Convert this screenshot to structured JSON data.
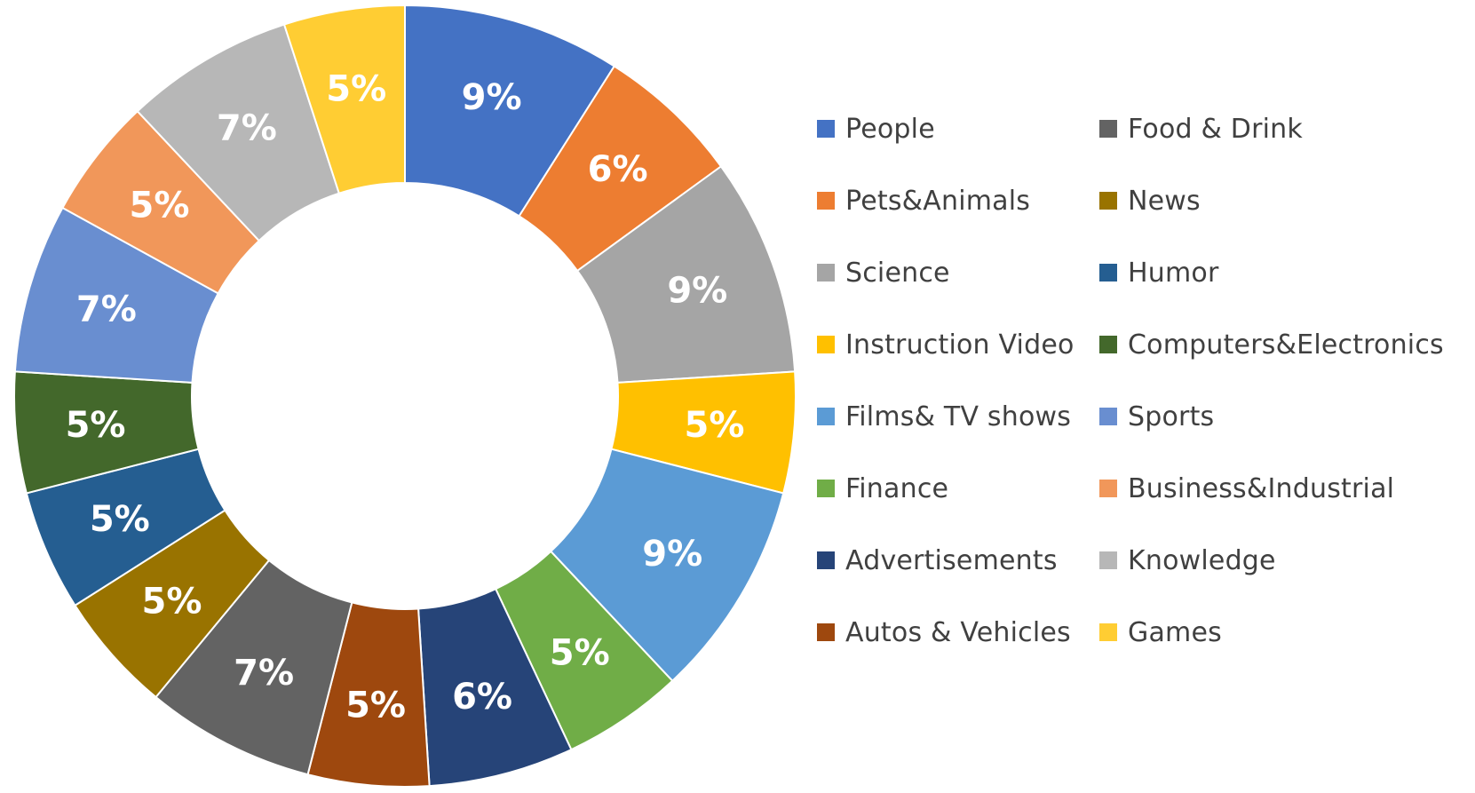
{
  "chart_data": {
    "type": "pie",
    "variant": "donut",
    "legend_position": "right",
    "slices": [
      {
        "name": "People",
        "value": 9,
        "label": "9%",
        "color": "#4472C4"
      },
      {
        "name": "Pets&Animals",
        "value": 6,
        "label": "6%",
        "color": "#ED7D31"
      },
      {
        "name": "Science",
        "value": 9,
        "label": "9%",
        "color": "#A5A5A5"
      },
      {
        "name": "Instruction Video",
        "value": 5,
        "label": "5%",
        "color": "#FFC000"
      },
      {
        "name": "Films& TV shows",
        "value": 9,
        "label": "9%",
        "color": "#5B9BD5"
      },
      {
        "name": "Finance",
        "value": 5,
        "label": "5%",
        "color": "#70AD47"
      },
      {
        "name": "Advertisements",
        "value": 6,
        "label": "6%",
        "color": "#264478"
      },
      {
        "name": "Autos & Vehicles",
        "value": 5,
        "label": "5%",
        "color": "#9E480E"
      },
      {
        "name": "Food & Drink",
        "value": 7,
        "label": "7%",
        "color": "#636363"
      },
      {
        "name": "News",
        "value": 5,
        "label": "5%",
        "color": "#997300"
      },
      {
        "name": "Humor",
        "value": 5,
        "label": "5%",
        "color": "#255E91"
      },
      {
        "name": "Computers&Electronics",
        "value": 5,
        "label": "5%",
        "color": "#43682B"
      },
      {
        "name": "Sports",
        "value": 7,
        "label": "7%",
        "color": "#698ED0"
      },
      {
        "name": "Business&Industrial",
        "value": 5,
        "label": "5%",
        "color": "#F1975A"
      },
      {
        "name": "Knowledge",
        "value": 7,
        "label": "7%",
        "color": "#B7B7B7"
      },
      {
        "name": "Games",
        "value": 5,
        "label": "5%",
        "color": "#FFCD33"
      }
    ]
  }
}
